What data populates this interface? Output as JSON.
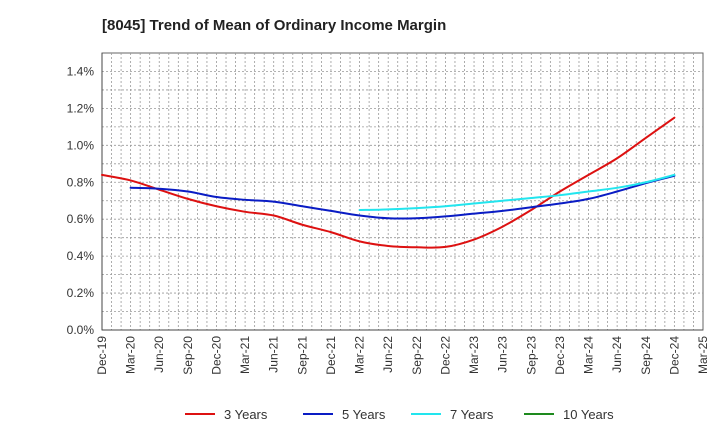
{
  "chart_data": {
    "type": "line",
    "title": "[8045]  Trend of Mean of Ordinary Income Margin",
    "xlabel": "",
    "ylabel": "",
    "x": [
      "Dec-19",
      "Mar-20",
      "Jun-20",
      "Sep-20",
      "Dec-20",
      "Mar-21",
      "Jun-21",
      "Sep-21",
      "Dec-21",
      "Mar-22",
      "Jun-22",
      "Sep-22",
      "Dec-22",
      "Mar-23",
      "Jun-23",
      "Sep-23",
      "Dec-23",
      "Mar-24",
      "Jun-24",
      "Sep-24",
      "Dec-24",
      "Mar-25"
    ],
    "y_ticks": [
      "0.0%",
      "0.2%",
      "0.4%",
      "0.6%",
      "0.8%",
      "1.0%",
      "1.2%",
      "1.4%"
    ],
    "ylim": [
      0,
      1.5
    ],
    "grid": true,
    "legend_position": "bottom",
    "series": [
      {
        "name": "3 Years",
        "color": "#dd1111",
        "values": [
          0.84,
          0.81,
          0.76,
          0.71,
          0.67,
          0.64,
          0.62,
          0.57,
          0.53,
          0.48,
          0.455,
          0.448,
          0.45,
          0.49,
          0.56,
          0.65,
          0.75,
          0.84,
          0.93,
          1.04,
          1.15,
          null
        ]
      },
      {
        "name": "5 Years",
        "color": "#0a1cc4",
        "values": [
          null,
          0.77,
          0.765,
          0.75,
          0.72,
          0.705,
          0.695,
          0.67,
          0.645,
          0.62,
          0.605,
          0.605,
          0.615,
          0.63,
          0.645,
          0.665,
          0.685,
          0.71,
          0.75,
          0.795,
          0.835,
          null
        ]
      },
      {
        "name": "7 Years",
        "color": "#22e5ee",
        "values": [
          null,
          null,
          null,
          null,
          null,
          null,
          null,
          null,
          null,
          0.65,
          0.653,
          0.66,
          0.67,
          0.685,
          0.7,
          0.715,
          0.73,
          0.75,
          0.77,
          0.8,
          0.84,
          null
        ]
      },
      {
        "name": "10 Years",
        "color": "#1e8a1e",
        "values": [
          null,
          null,
          null,
          null,
          null,
          null,
          null,
          null,
          null,
          null,
          null,
          null,
          null,
          null,
          null,
          null,
          null,
          null,
          null,
          null,
          null,
          null
        ]
      }
    ]
  }
}
